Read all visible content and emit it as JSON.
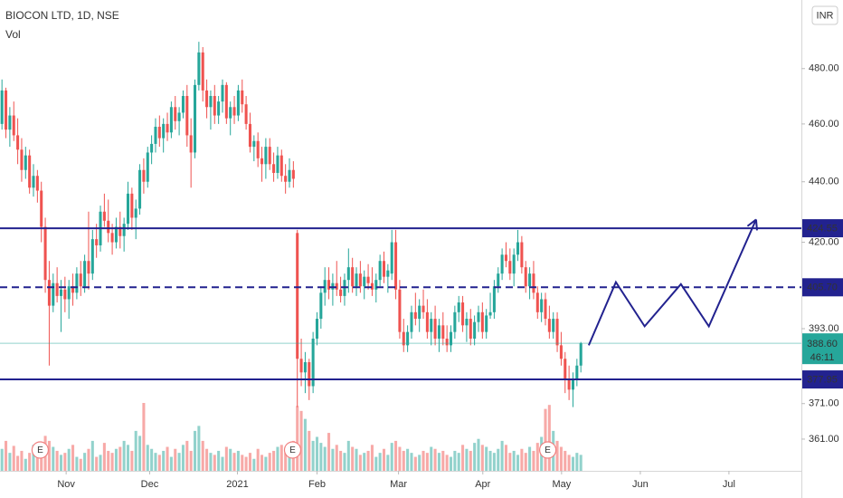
{
  "chart_data": {
    "type": "candlestick",
    "title": "BIOCON LTD, 1D, NSE",
    "volume_label": "Vol",
    "currency": "INR",
    "log_scale": true,
    "grid": false,
    "ylim": [
      352.3,
      506
    ],
    "yticks": [
      {
        "value": 480,
        "label": "480.00"
      },
      {
        "value": 460,
        "label": "460.00"
      },
      {
        "value": 440,
        "label": "440.00"
      },
      {
        "value": 420,
        "label": "420.00"
      },
      {
        "value": 393,
        "label": "393.00"
      },
      {
        "value": 371,
        "label": "371.00"
      },
      {
        "value": 361,
        "label": "361.00"
      }
    ],
    "xlim": [
      -0.5,
      203
    ],
    "xticks": [
      {
        "value": 16.3,
        "label": "Nov"
      },
      {
        "value": 37.5,
        "label": "Dec"
      },
      {
        "value": 59.8,
        "label": "2021"
      },
      {
        "value": 80,
        "label": "Feb"
      },
      {
        "value": 100.7,
        "label": "Mar"
      },
      {
        "value": 122.1,
        "label": "Apr"
      },
      {
        "value": 142.1,
        "label": "May"
      },
      {
        "value": 162.1,
        "label": "Jun"
      },
      {
        "value": 184.6,
        "label": "Jul"
      }
    ],
    "up_color": "#26a69a",
    "down_color": "#ef5350",
    "level_color": "#22228f",
    "levels": [
      {
        "value": 424.55,
        "style": "solid"
      },
      {
        "value": {
          "value": 405.7,
          "label": "405.70"
        },
        "style": "dashed"
      },
      {
        "value": 377.95,
        "style": "solid"
      }
    ],
    "last_price": {
      "value": 388.6,
      "label": "388.60"
    },
    "countdown": "46:11",
    "events": [
      {
        "label": "E",
        "x": 9.7
      },
      {
        "label": "E",
        "x": 73.8
      },
      {
        "label": "E",
        "x": 138.6
      }
    ],
    "projection": {
      "x": [
        149,
        155.9,
        163.2,
        172.4,
        179.5,
        191.5
      ],
      "y": [
        388,
        407.3,
        393.7,
        406.7,
        393.7,
        427.4
      ]
    },
    "candles": [
      [
        460,
        476,
        458,
        472
      ],
      [
        472,
        473,
        455,
        458
      ],
      [
        458,
        466,
        452,
        463
      ],
      [
        463,
        468,
        454,
        456
      ],
      [
        456,
        462,
        446,
        451
      ],
      [
        451,
        455,
        440,
        444
      ],
      [
        444,
        452,
        441,
        449
      ],
      [
        449,
        451,
        436,
        438
      ],
      [
        438,
        446,
        435,
        442
      ],
      [
        442,
        444,
        433,
        437
      ],
      [
        437,
        440,
        420,
        425
      ],
      [
        425,
        428,
        404,
        408
      ],
      [
        408,
        414,
        382,
        400
      ],
      [
        400,
        410,
        398,
        407
      ],
      [
        407,
        412,
        401,
        403
      ],
      [
        403,
        408,
        392,
        405
      ],
      [
        405,
        409,
        398,
        402
      ],
      [
        402,
        408,
        396,
        406
      ],
      [
        406,
        410,
        400,
        404
      ],
      [
        404,
        412,
        402,
        410
      ],
      [
        410,
        414,
        403,
        406
      ],
      [
        406,
        416,
        404,
        414
      ],
      [
        414,
        430,
        405,
        410
      ],
      [
        410,
        424,
        408,
        421
      ],
      [
        421,
        426,
        415,
        419
      ],
      [
        419,
        432,
        417,
        430
      ],
      [
        430,
        436,
        425,
        427
      ],
      [
        427,
        434,
        420,
        423
      ],
      [
        423,
        426,
        416,
        420
      ],
      [
        420,
        428,
        418,
        425
      ],
      [
        425,
        430,
        418,
        422
      ],
      [
        422,
        428,
        417,
        426
      ],
      [
        426,
        440,
        424,
        436
      ],
      [
        436,
        438,
        424,
        428
      ],
      [
        428,
        434,
        421,
        431
      ],
      [
        431,
        446,
        429,
        444
      ],
      [
        444,
        448,
        436,
        440
      ],
      [
        440,
        452,
        438,
        450
      ],
      [
        450,
        456,
        446,
        453
      ],
      [
        453,
        462,
        450,
        459
      ],
      [
        459,
        463,
        452,
        455
      ],
      [
        455,
        462,
        450,
        460
      ],
      [
        460,
        464,
        454,
        457
      ],
      [
        457,
        468,
        455,
        466
      ],
      [
        466,
        470,
        458,
        461
      ],
      [
        461,
        466,
        456,
        464
      ],
      [
        464,
        472,
        462,
        470
      ],
      [
        470,
        474,
        452,
        456
      ],
      [
        456,
        462,
        438,
        450
      ],
      [
        450,
        476,
        448,
        474
      ],
      [
        474,
        490,
        472,
        486
      ],
      [
        486,
        488,
        468,
        472
      ],
      [
        472,
        476,
        462,
        466
      ],
      [
        466,
        472,
        458,
        470
      ],
      [
        470,
        474,
        460,
        463
      ],
      [
        463,
        470,
        460,
        468
      ],
      [
        468,
        476,
        464,
        474
      ],
      [
        474,
        475,
        460,
        462
      ],
      [
        462,
        468,
        456,
        466
      ],
      [
        466,
        470,
        460,
        463
      ],
      [
        463,
        474,
        461,
        472
      ],
      [
        472,
        476,
        464,
        467
      ],
      [
        467,
        470,
        458,
        460
      ],
      [
        460,
        464,
        450,
        452
      ],
      [
        452,
        456,
        447,
        454
      ],
      [
        454,
        457,
        445,
        448
      ],
      [
        448,
        452,
        440,
        446
      ],
      [
        446,
        455,
        441,
        452
      ],
      [
        452,
        455,
        444,
        446
      ],
      [
        446,
        450,
        440,
        443
      ],
      [
        443,
        452,
        441,
        449
      ],
      [
        449,
        451,
        440,
        442
      ],
      [
        442,
        446,
        436,
        440
      ],
      [
        440,
        448,
        438,
        444
      ],
      [
        444,
        447,
        438,
        441
      ],
      [
        423,
        424,
        370,
        384
      ],
      [
        384,
        390,
        376,
        380
      ],
      [
        380,
        386,
        374,
        383
      ],
      [
        383,
        384,
        372,
        376
      ],
      [
        376,
        392,
        374,
        390
      ],
      [
        390,
        398,
        388,
        396
      ],
      [
        396,
        406,
        393,
        404
      ],
      [
        404,
        412,
        400,
        408
      ],
      [
        408,
        412,
        402,
        405
      ],
      [
        405,
        410,
        400,
        407
      ],
      [
        407,
        414,
        403,
        405
      ],
      [
        405,
        409,
        401,
        403
      ],
      [
        403,
        410,
        400,
        408
      ],
      [
        408,
        418,
        404,
        412
      ],
      [
        412,
        415,
        404,
        406
      ],
      [
        406,
        412,
        403,
        410
      ],
      [
        410,
        414,
        404,
        406
      ],
      [
        406,
        411,
        402,
        409
      ],
      [
        409,
        413,
        405,
        407
      ],
      [
        407,
        412,
        403,
        405
      ],
      [
        405,
        410,
        401,
        408
      ],
      [
        408,
        416,
        406,
        414
      ],
      [
        414,
        417,
        407,
        409
      ],
      [
        409,
        413,
        404,
        411
      ],
      [
        410,
        424,
        408,
        420
      ],
      [
        420,
        424,
        402,
        405
      ],
      [
        405,
        408,
        390,
        392
      ],
      [
        392,
        396,
        386,
        388
      ],
      [
        388,
        394,
        386,
        392
      ],
      [
        392,
        400,
        390,
        398
      ],
      [
        398,
        404,
        394,
        396
      ],
      [
        396,
        402,
        392,
        400
      ],
      [
        400,
        405,
        396,
        398
      ],
      [
        398,
        402,
        390,
        392
      ],
      [
        392,
        398,
        388,
        396
      ],
      [
        396,
        400,
        388,
        390
      ],
      [
        390,
        396,
        386,
        394
      ],
      [
        394,
        398,
        388,
        390
      ],
      [
        390,
        394,
        386,
        388
      ],
      [
        388,
        394,
        386,
        392
      ],
      [
        392,
        400,
        390,
        398
      ],
      [
        398,
        403,
        395,
        401
      ],
      [
        401,
        403,
        392,
        394
      ],
      [
        394,
        398,
        389,
        396
      ],
      [
        396,
        399,
        388,
        390
      ],
      [
        390,
        397,
        388,
        395
      ],
      [
        395,
        400,
        392,
        398
      ],
      [
        398,
        401,
        390,
        392
      ],
      [
        392,
        399,
        390,
        397
      ],
      [
        397,
        404,
        396,
        398
      ],
      [
        398,
        408,
        396,
        406
      ],
      [
        406,
        412,
        404,
        410
      ],
      [
        410,
        418,
        408,
        416
      ],
      [
        416,
        420,
        412,
        414
      ],
      [
        414,
        418,
        408,
        410
      ],
      [
        410,
        418,
        406,
        416
      ],
      [
        416,
        424,
        414,
        420
      ],
      [
        420,
        422,
        410,
        412
      ],
      [
        412,
        414,
        404,
        406
      ],
      [
        406,
        412,
        402,
        410
      ],
      [
        410,
        414,
        402,
        404
      ],
      [
        404,
        406,
        396,
        398
      ],
      [
        398,
        404,
        395,
        402
      ],
      [
        402,
        404,
        394,
        396
      ],
      [
        396,
        400,
        390,
        392
      ],
      [
        392,
        398,
        390,
        396
      ],
      [
        396,
        398,
        386,
        388
      ],
      [
        388,
        392,
        382,
        384
      ],
      [
        384,
        386,
        374,
        378
      ],
      [
        378,
        382,
        372,
        375
      ],
      [
        375,
        380,
        370,
        378
      ],
      [
        378,
        384,
        376,
        382
      ],
      [
        382,
        389,
        380,
        388.6
      ]
    ],
    "volume": [
      22,
      30,
      18,
      25,
      15,
      20,
      12,
      18,
      26,
      14,
      28,
      35,
      30,
      24,
      20,
      16,
      18,
      22,
      26,
      14,
      12,
      18,
      22,
      30,
      14,
      16,
      28,
      20,
      18,
      22,
      24,
      30,
      26,
      20,
      40,
      35,
      68,
      26,
      22,
      18,
      16,
      20,
      24,
      14,
      22,
      18,
      26,
      30,
      20,
      40,
      45,
      30,
      22,
      18,
      16,
      20,
      14,
      24,
      22,
      18,
      20,
      16,
      14,
      18,
      12,
      22,
      16,
      14,
      18,
      20,
      24,
      26,
      18,
      22,
      30,
      65,
      60,
      52,
      40,
      30,
      34,
      28,
      24,
      38,
      22,
      26,
      20,
      18,
      30,
      24,
      22,
      16,
      18,
      20,
      26,
      14,
      18,
      22,
      16,
      28,
      30,
      24,
      20,
      22,
      18,
      14,
      16,
      20,
      18,
      24,
      22,
      18,
      20,
      16,
      14,
      20,
      18,
      26,
      22,
      20,
      28,
      32,
      26,
      24,
      20,
      18,
      22,
      30,
      26,
      18,
      20,
      16,
      22,
      18,
      24,
      20,
      28,
      34,
      62,
      66,
      40,
      30,
      24,
      20,
      16,
      14,
      18,
      16
    ]
  }
}
